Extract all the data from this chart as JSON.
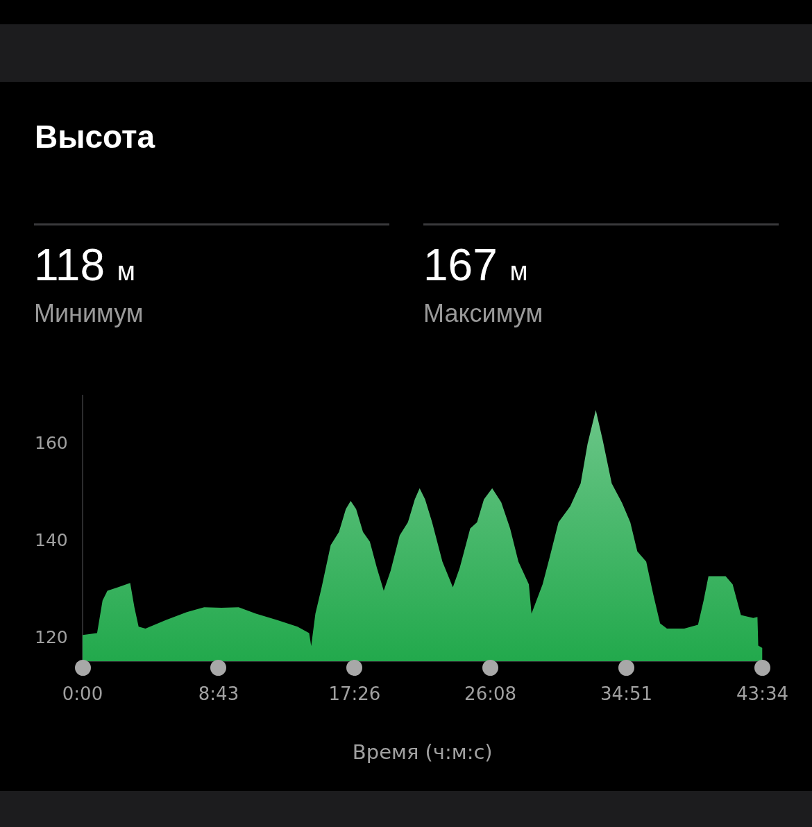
{
  "chart_data": {
    "type": "area",
    "title": "Высота",
    "xlabel": "Время (ч:м:с)",
    "annotations": [
      "118 м",
      "Минимум",
      "167 м",
      "Максимум"
    ],
    "xlim": [
      0,
      43.567
    ],
    "xticks": [
      {
        "value": 0,
        "label": "0:00"
      },
      {
        "value": 8.717,
        "label": "8:43"
      },
      {
        "value": 17.433,
        "label": "17:26"
      },
      {
        "value": 26.133,
        "label": "26:08"
      },
      {
        "value": 34.85,
        "label": "34:51"
      },
      {
        "value": 43.567,
        "label": "43:34"
      }
    ],
    "ylim": [
      115.3,
      170
    ],
    "yticks": [
      120,
      140,
      160
    ],
    "grid": false,
    "legend": false,
    "series": [
      {
        "color": "#22a94c",
        "x": [
          0,
          0.93,
          1.28,
          1.59,
          2.26,
          3.05,
          3.32,
          3.59,
          4.03,
          5.36,
          6.68,
          7.79,
          8.9,
          10.0,
          11.11,
          12.44,
          13.77,
          14.52,
          14.65,
          14.92,
          15.32,
          15.9,
          16.43,
          16.87,
          17.18,
          17.53,
          17.97,
          18.41,
          18.86,
          19.3,
          19.74,
          20.32,
          20.85,
          21.29,
          21.6,
          21.95,
          22.4,
          23.06,
          23.73,
          24.17,
          24.84,
          25.28,
          25.72,
          26.25,
          26.83,
          27.4,
          27.93,
          28.6,
          28.77,
          29.48,
          29.92,
          30.5,
          31.25,
          31.92,
          32.36,
          32.89,
          33.34,
          33.91,
          34.57,
          35.1,
          35.55,
          36.12,
          36.57,
          37.01,
          37.45,
          38.56,
          39.44,
          39.8,
          40.11,
          41.21,
          41.66,
          42.19,
          42.98,
          43.25,
          43.3,
          43.567
        ],
        "values": [
          120.7,
          121.1,
          127.8,
          129.8,
          130.5,
          131.4,
          126.4,
          122.4,
          122,
          123.8,
          125.4,
          126.4,
          126.3,
          126.4,
          125.1,
          123.8,
          122.4,
          121.1,
          118.4,
          125.1,
          130.5,
          139.2,
          141.9,
          146.6,
          148.3,
          146.6,
          141.9,
          139.9,
          134.5,
          129.8,
          133.9,
          141.2,
          143.9,
          148.6,
          150.9,
          148.6,
          143.9,
          135.8,
          130.5,
          134.5,
          142.6,
          143.9,
          148.6,
          150.9,
          148,
          142.6,
          135.8,
          131.1,
          125.1,
          131.1,
          136.5,
          143.9,
          147.2,
          151.9,
          160,
          167,
          160.7,
          151.9,
          147.9,
          143.9,
          137.9,
          135.8,
          129.1,
          123.1,
          122,
          122,
          122.8,
          127.8,
          132.8,
          132.8,
          131.1,
          124.8,
          124.2,
          124.4,
          118.5,
          118
        ]
      }
    ]
  }
}
